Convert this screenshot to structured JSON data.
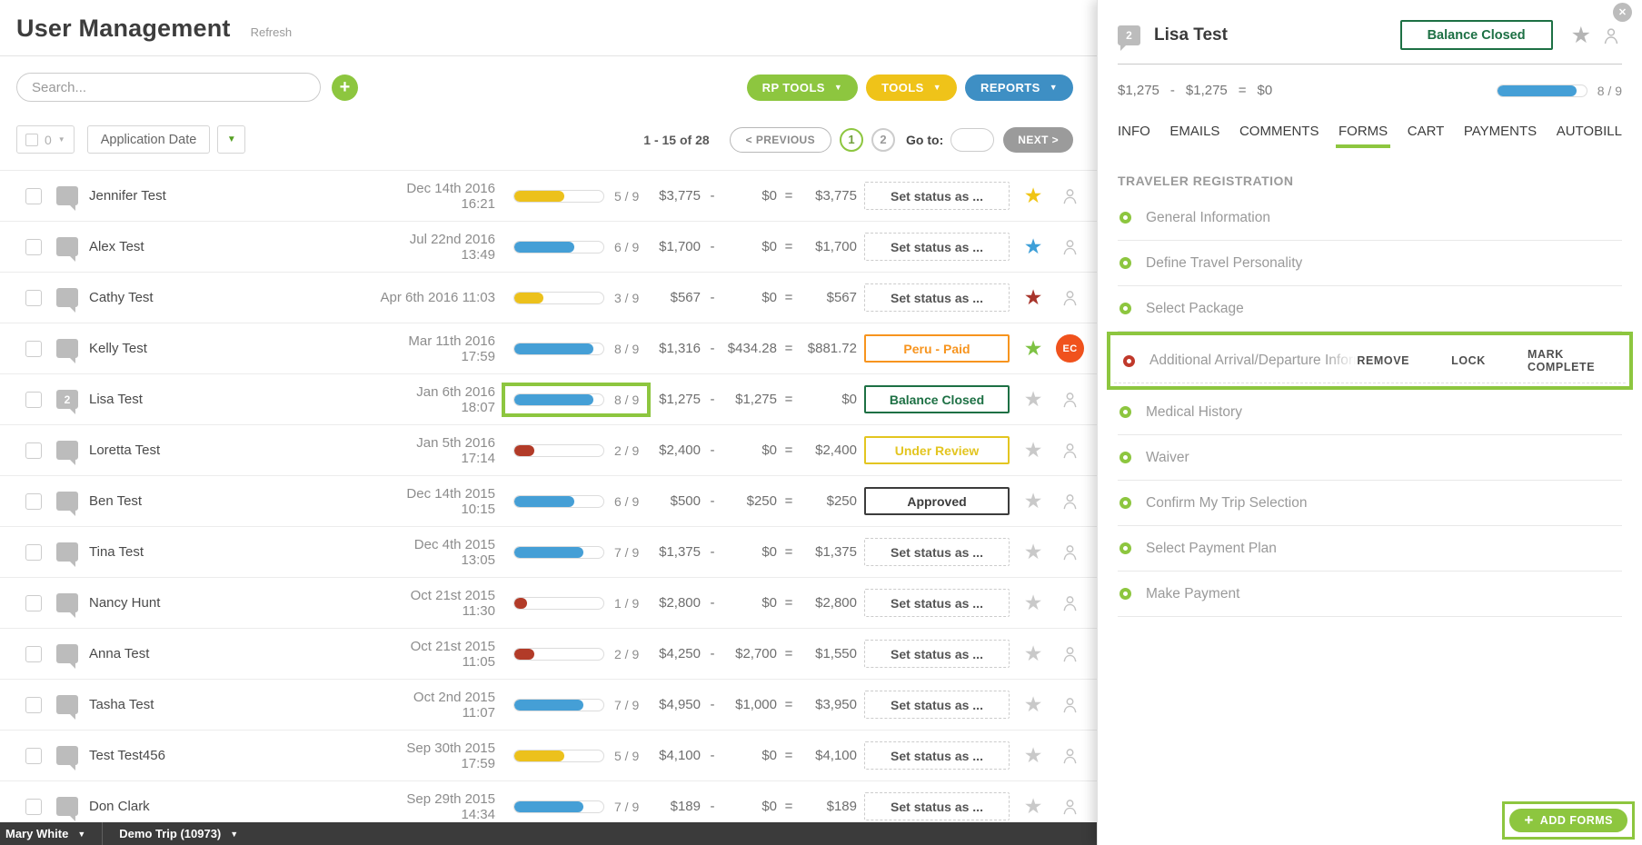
{
  "app": {
    "title": "User Management",
    "refresh_label": "Refresh"
  },
  "icons": {
    "close": "✕",
    "star": "★",
    "caret_down": "▼",
    "plus": "+"
  },
  "toolbar": {
    "search_placeholder": "Search...",
    "buttons": [
      {
        "label": "RP TOOLS",
        "color": "#8dc63f"
      },
      {
        "label": "TOOLS",
        "color": "#efc319"
      },
      {
        "label": "REPORTS",
        "color": "#3e8fc4"
      }
    ]
  },
  "filters": {
    "selected_count": "0",
    "sort_label": "Application Date"
  },
  "pagination": {
    "range": "1 - 15 of 28",
    "previous": "< PREVIOUS",
    "pages": [
      "1",
      "2"
    ],
    "active_page": "1",
    "goto_label": "Go to:",
    "next": "NEXT >"
  },
  "table": {
    "separators": {
      "minus": "-",
      "equals": "="
    },
    "progress_total": 9,
    "rows": [
      {
        "name": "Jennifer Test",
        "comment_count": "",
        "date": "Dec 14th 2016 16:21",
        "progress": 5,
        "progress_label": "5 / 9",
        "bar_color": "#ecc11c",
        "gross": "$3,775",
        "paid": "$0",
        "net": "$3,775",
        "status_label": "Set status as ...",
        "status_type": "dashed",
        "status_color": "",
        "star_color": "#f0c514",
        "ec_badge": "",
        "highlight": false
      },
      {
        "name": "Alex Test",
        "comment_count": "",
        "date": "Jul 22nd 2016 13:49",
        "progress": 6,
        "progress_label": "6 / 9",
        "bar_color": "#459fd6",
        "gross": "$1,700",
        "paid": "$0",
        "net": "$1,700",
        "status_label": "Set status as ...",
        "status_type": "dashed",
        "status_color": "",
        "star_color": "#3e9fd8",
        "ec_badge": "",
        "highlight": false
      },
      {
        "name": "Cathy Test",
        "comment_count": "",
        "date": "Apr 6th 2016 11:03",
        "progress": 3,
        "progress_label": "3 / 9",
        "bar_color": "#ecc11c",
        "gross": "$567",
        "paid": "$0",
        "net": "$567",
        "status_label": "Set status as ...",
        "status_type": "dashed",
        "status_color": "",
        "star_color": "#a8352c",
        "ec_badge": "",
        "highlight": false
      },
      {
        "name": "Kelly Test",
        "comment_count": "",
        "date": "Mar 11th 2016 17:59",
        "progress": 8,
        "progress_label": "8 / 9",
        "bar_color": "#459fd6",
        "gross": "$1,316",
        "paid": "$434.28",
        "net": "$881.72",
        "status_label": "Peru - Paid",
        "status_type": "solid",
        "status_color": "#f7941e",
        "star_color": "#7dc243",
        "ec_badge": "EC",
        "highlight": false
      },
      {
        "name": "Lisa Test",
        "comment_count": "2",
        "date": "Jan 6th 2016 18:07",
        "progress": 8,
        "progress_label": "8 / 9",
        "bar_color": "#459fd6",
        "gross": "$1,275",
        "paid": "$1,275",
        "net": "$0",
        "status_label": "Balance Closed",
        "status_type": "solid",
        "status_color": "#1d7044",
        "star_color": "#c9c9c9",
        "ec_badge": "",
        "highlight": true
      },
      {
        "name": "Loretta Test",
        "comment_count": "",
        "date": "Jan 5th 2016 17:14",
        "progress": 2,
        "progress_label": "2 / 9",
        "bar_color": "#b23b28",
        "gross": "$2,400",
        "paid": "$0",
        "net": "$2,400",
        "status_label": "Under Review",
        "status_type": "solid",
        "status_color": "#e3c520",
        "star_color": "#c9c9c9",
        "ec_badge": "",
        "highlight": false
      },
      {
        "name": "Ben Test",
        "comment_count": "",
        "date": "Dec 14th 2015 10:15",
        "progress": 6,
        "progress_label": "6 / 9",
        "bar_color": "#459fd6",
        "gross": "$500",
        "paid": "$250",
        "net": "$250",
        "status_label": "Approved",
        "status_type": "solid",
        "status_color": "#3c3c3c",
        "star_color": "#c9c9c9",
        "ec_badge": "",
        "highlight": false
      },
      {
        "name": "Tina Test",
        "comment_count": "",
        "date": "Dec 4th 2015 13:05",
        "progress": 7,
        "progress_label": "7 / 9",
        "bar_color": "#459fd6",
        "gross": "$1,375",
        "paid": "$0",
        "net": "$1,375",
        "status_label": "Set status as ...",
        "status_type": "dashed",
        "status_color": "",
        "star_color": "#c9c9c9",
        "ec_badge": "",
        "highlight": false
      },
      {
        "name": "Nancy Hunt",
        "comment_count": "",
        "date": "Oct 21st 2015 11:30",
        "progress": 1,
        "progress_label": "1 / 9",
        "bar_color": "#b23b28",
        "gross": "$2,800",
        "paid": "$0",
        "net": "$2,800",
        "status_label": "Set status as ...",
        "status_type": "dashed",
        "status_color": "",
        "star_color": "#c9c9c9",
        "ec_badge": "",
        "highlight": false
      },
      {
        "name": "Anna Test",
        "comment_count": "",
        "date": "Oct 21st 2015 11:05",
        "progress": 2,
        "progress_label": "2 / 9",
        "bar_color": "#b23b28",
        "gross": "$4,250",
        "paid": "$2,700",
        "net": "$1,550",
        "status_label": "Set status as ...",
        "status_type": "dashed",
        "status_color": "",
        "star_color": "#c9c9c9",
        "ec_badge": "",
        "highlight": false
      },
      {
        "name": "Tasha Test",
        "comment_count": "",
        "date": "Oct 2nd 2015 11:07",
        "progress": 7,
        "progress_label": "7 / 9",
        "bar_color": "#459fd6",
        "gross": "$4,950",
        "paid": "$1,000",
        "net": "$3,950",
        "status_label": "Set status as ...",
        "status_type": "dashed",
        "status_color": "",
        "star_color": "#c9c9c9",
        "ec_badge": "",
        "highlight": false
      },
      {
        "name": "Test Test456",
        "comment_count": "",
        "date": "Sep 30th 2015 17:59",
        "progress": 5,
        "progress_label": "5 / 9",
        "bar_color": "#ecc11c",
        "gross": "$4,100",
        "paid": "$0",
        "net": "$4,100",
        "status_label": "Set status as ...",
        "status_type": "dashed",
        "status_color": "",
        "star_color": "#c9c9c9",
        "ec_badge": "",
        "highlight": false
      },
      {
        "name": "Don Clark",
        "comment_count": "",
        "date": "Sep 29th 2015 14:34",
        "progress": 7,
        "progress_label": "7 / 9",
        "bar_color": "#459fd6",
        "gross": "$189",
        "paid": "$0",
        "net": "$189",
        "status_label": "Set status as ...",
        "status_type": "dashed",
        "status_color": "",
        "star_color": "#c9c9c9",
        "ec_badge": "",
        "highlight": false
      }
    ]
  },
  "panel": {
    "comment_count": "2",
    "name": "Lisa Test",
    "status_label": "Balance Closed",
    "gross": "$1,275",
    "paid": "$1,275",
    "net": "$0",
    "progress": 8,
    "progress_label": "8 / 9",
    "bar_color": "#459fd6",
    "tabs": [
      "INFO",
      "EMAILS",
      "COMMENTS",
      "FORMS",
      "CART",
      "PAYMENTS",
      "AUTOBILL"
    ],
    "active_tab": "FORMS",
    "section_title": "TRAVELER REGISTRATION",
    "forms": [
      {
        "label": "General Information",
        "bullet": "#8dc63f",
        "highlight": false
      },
      {
        "label": "Define Travel Personality",
        "bullet": "#8dc63f",
        "highlight": false
      },
      {
        "label": "Select Package",
        "bullet": "#8dc63f",
        "highlight": false
      },
      {
        "label": "Additional Arrival/Departure Informati",
        "bullet": "#c0392b",
        "highlight": true,
        "actions": [
          "REMOVE",
          "LOCK",
          "MARK COMPLETE"
        ]
      },
      {
        "label": "Medical History",
        "bullet": "#8dc63f",
        "highlight": false
      },
      {
        "label": "Waiver",
        "bullet": "#8dc63f",
        "highlight": false
      },
      {
        "label": "Confirm My Trip Selection",
        "bullet": "#8dc63f",
        "highlight": false
      },
      {
        "label": "Select Payment Plan",
        "bullet": "#8dc63f",
        "highlight": false
      },
      {
        "label": "Make Payment",
        "bullet": "#8dc63f",
        "highlight": false
      }
    ],
    "add_forms_label": "ADD FORMS"
  },
  "footer": {
    "user": "Mary White",
    "trip": "Demo Trip (10973)"
  }
}
